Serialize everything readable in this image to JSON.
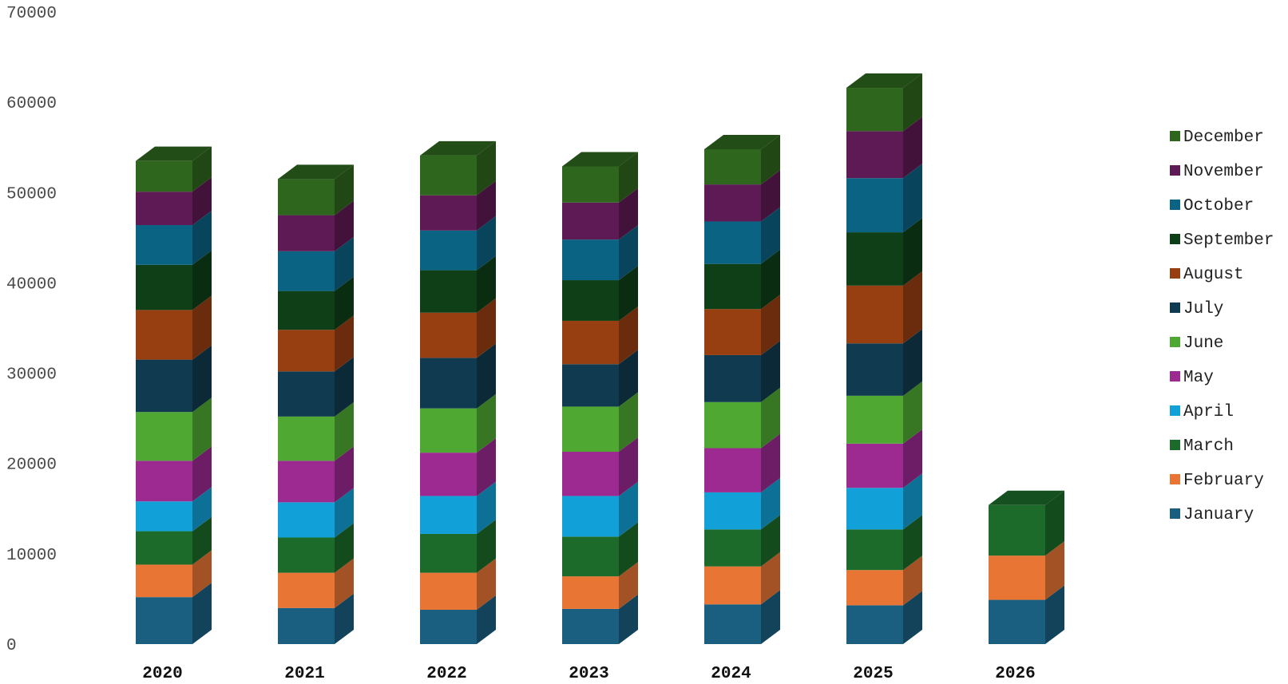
{
  "chart_data": {
    "type": "bar",
    "stacked": true,
    "style": "3d",
    "categories": [
      "2020",
      "2021",
      "2022",
      "2023",
      "2024",
      "2025",
      "2026"
    ],
    "ylim": [
      0,
      70000
    ],
    "yticks": [
      0,
      10000,
      20000,
      30000,
      40000,
      50000,
      60000,
      70000
    ],
    "grid": false,
    "legend_position": "right",
    "series": [
      {
        "name": "January",
        "color": "#1a5f80",
        "values": [
          5200,
          4000,
          3800,
          3900,
          4400,
          4300,
          4900
        ]
      },
      {
        "name": "February",
        "color": "#e87533",
        "values": [
          3600,
          3900,
          4100,
          3600,
          4200,
          3900,
          4900
        ]
      },
      {
        "name": "March",
        "color": "#1c6b2a",
        "values": [
          3700,
          3900,
          4300,
          4400,
          4100,
          4500,
          5600
        ]
      },
      {
        "name": "April",
        "color": "#12a0d8",
        "values": [
          3300,
          3900,
          4200,
          4500,
          4100,
          4600,
          0
        ]
      },
      {
        "name": "May",
        "color": "#9c2a90",
        "values": [
          4500,
          4600,
          4800,
          4900,
          4900,
          4900,
          0
        ]
      },
      {
        "name": "June",
        "color": "#4ea832",
        "values": [
          5400,
          4900,
          4900,
          5000,
          5100,
          5300,
          0
        ]
      },
      {
        "name": "July",
        "color": "#0f3a4f",
        "values": [
          5800,
          5000,
          5600,
          4700,
          5200,
          5800,
          0
        ]
      },
      {
        "name": "August",
        "color": "#983f12",
        "values": [
          5500,
          4600,
          5000,
          4800,
          5100,
          6400,
          0
        ]
      },
      {
        "name": "September",
        "color": "#0e3f17",
        "values": [
          5000,
          4300,
          4700,
          4500,
          5000,
          5900,
          0
        ]
      },
      {
        "name": "October",
        "color": "#0b6383",
        "values": [
          4400,
          4400,
          4400,
          4500,
          4700,
          6000,
          0
        ]
      },
      {
        "name": "November",
        "color": "#5e1a55",
        "values": [
          3700,
          4000,
          3900,
          4100,
          4100,
          5200,
          0
        ]
      },
      {
        "name": "December",
        "color": "#2f661e",
        "values": [
          3400,
          4000,
          4400,
          4000,
          3900,
          4800,
          0
        ]
      }
    ]
  }
}
